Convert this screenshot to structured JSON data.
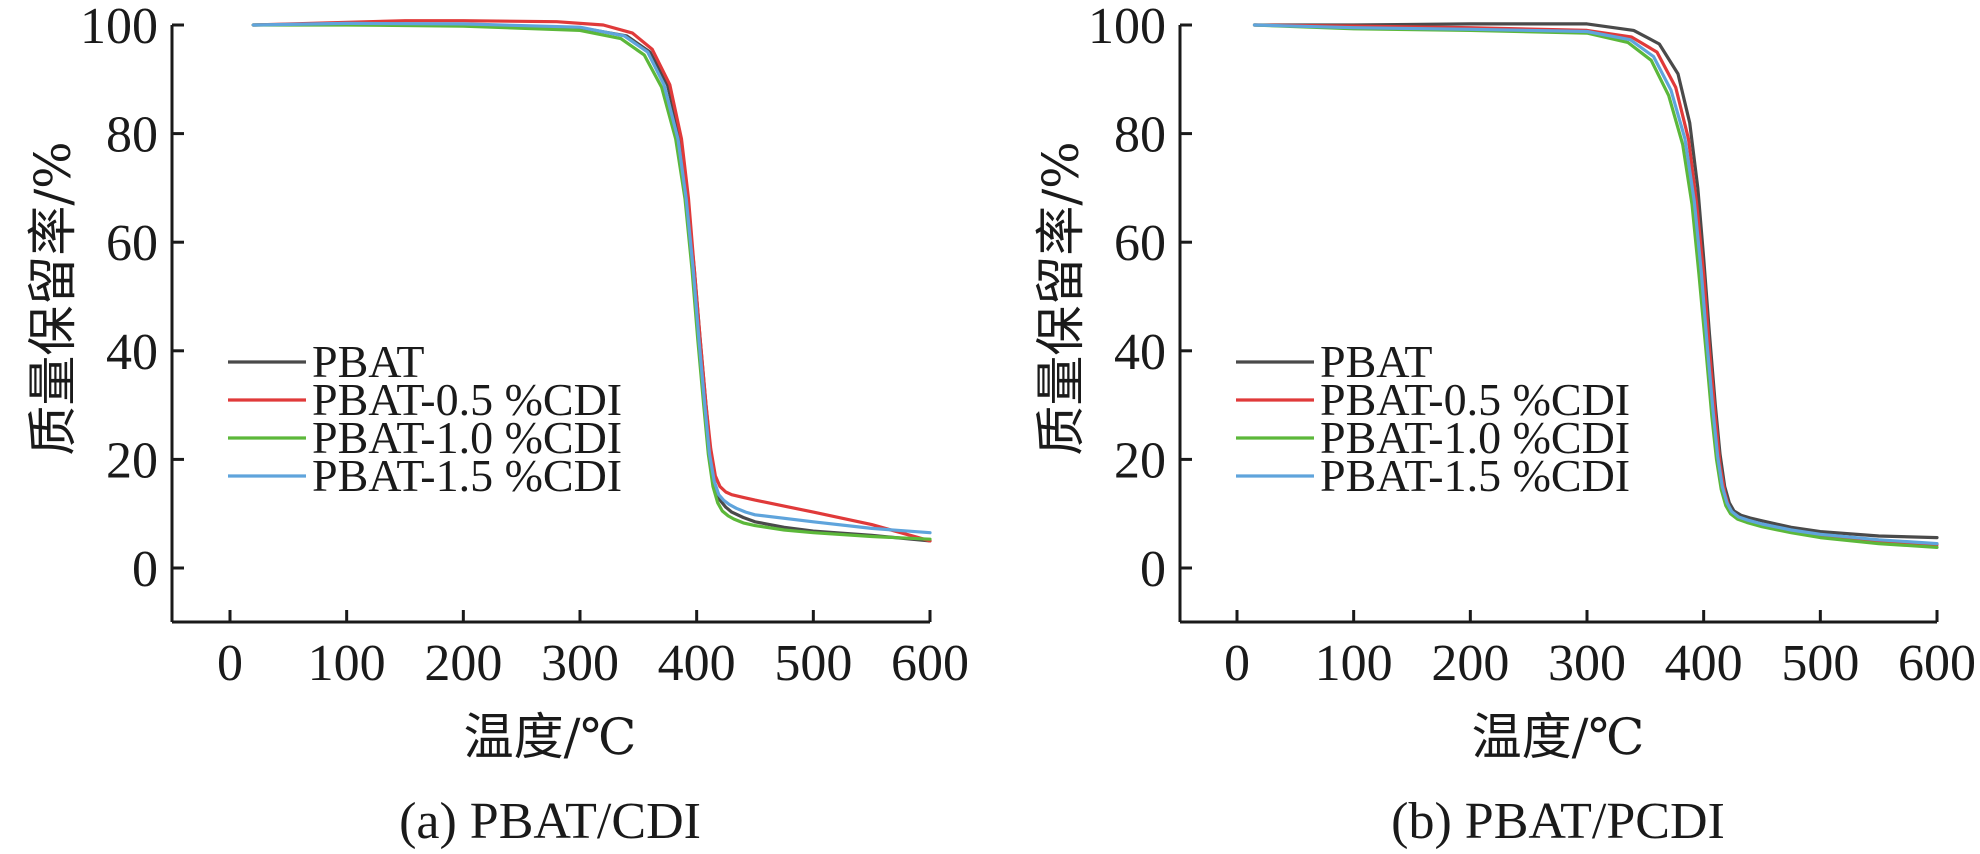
{
  "chart_data": [
    {
      "type": "line",
      "caption": "(a) PBAT/CDI",
      "xlabel": "温度/℃",
      "ylabel": "质量保留率/%",
      "xlim": [
        -50,
        600
      ],
      "ylim": [
        -10,
        100
      ],
      "xticks": [
        "0",
        "100",
        "200",
        "300",
        "400",
        "500",
        "600"
      ],
      "yticks": [
        "0",
        "20",
        "40",
        "60",
        "80",
        "100"
      ],
      "grid": false,
      "legend_position": "center-left",
      "series": [
        {
          "name": "PBAT",
          "color": "#4a4a4a",
          "x": [
            20,
            100,
            200,
            300,
            340,
            360,
            375,
            385,
            392,
            398,
            403,
            408,
            412,
            416,
            420,
            425,
            430,
            440,
            450,
            475,
            500,
            550,
            600
          ],
          "y": [
            100,
            100.2,
            100.1,
            99.5,
            98.0,
            95.0,
            89.0,
            80.0,
            68.0,
            55.0,
            42.0,
            30.0,
            21.0,
            15.0,
            12.5,
            11.2,
            10.3,
            9.3,
            8.5,
            7.5,
            6.8,
            6.0,
            5.0
          ]
        },
        {
          "name": "PBAT-0.5 %CDI",
          "color": "#e03a3a",
          "x": [
            20,
            100,
            150,
            200,
            280,
            320,
            345,
            362,
            377,
            387,
            393,
            398,
            403,
            408,
            412,
            416,
            420,
            425,
            430,
            440,
            450,
            500,
            550,
            590,
            600
          ],
          "y": [
            100,
            100.5,
            100.8,
            100.8,
            100.6,
            100.0,
            98.5,
            95.5,
            89.0,
            79.0,
            68.0,
            55.0,
            42.0,
            30.0,
            22.0,
            17.0,
            15.0,
            14.0,
            13.5,
            13.0,
            12.5,
            10.3,
            8.0,
            5.6,
            5.0
          ]
        },
        {
          "name": "PBAT-1.0 %CDI",
          "color": "#5cb83a",
          "x": [
            20,
            100,
            200,
            300,
            335,
            355,
            370,
            382,
            390,
            396,
            401,
            406,
            410,
            414,
            418,
            422,
            427,
            432,
            440,
            450,
            475,
            500,
            550,
            600
          ],
          "y": [
            100,
            100,
            99.8,
            99.0,
            97.5,
            94.5,
            88.5,
            79.0,
            68.0,
            55.0,
            42.0,
            30.0,
            21.0,
            15.0,
            12.0,
            10.5,
            9.6,
            9.0,
            8.3,
            7.8,
            7.0,
            6.5,
            5.8,
            5.3
          ]
        },
        {
          "name": "PBAT-1.5 %CDI",
          "color": "#5fa4dc",
          "x": [
            20,
            100,
            200,
            300,
            338,
            358,
            372,
            384,
            391,
            397,
            402,
            407,
            411,
            415,
            419,
            423,
            428,
            434,
            442,
            450,
            500,
            550,
            600
          ],
          "y": [
            100,
            100.3,
            100.2,
            99.6,
            98.0,
            95.0,
            89.0,
            79.0,
            68.0,
            55.0,
            42.0,
            30.0,
            21.0,
            16.0,
            13.5,
            12.5,
            11.7,
            11.0,
            10.3,
            9.8,
            8.5,
            7.3,
            6.5
          ]
        }
      ]
    },
    {
      "type": "line",
      "caption": "(b) PBAT/PCDI",
      "xlabel": "温度/℃",
      "ylabel": "质量保留率/%",
      "xlim": [
        -50,
        600
      ],
      "ylim": [
        -10,
        100
      ],
      "xticks": [
        "0",
        "100",
        "200",
        "300",
        "400",
        "500",
        "600"
      ],
      "yticks": [
        "0",
        "20",
        "40",
        "60",
        "80",
        "100"
      ],
      "grid": false,
      "legend_position": "center-left",
      "series": [
        {
          "name": "PBAT",
          "color": "#4a4a4a",
          "x": [
            15,
            100,
            200,
            300,
            340,
            362,
            378,
            388,
            395,
            400,
            405,
            410,
            414,
            418,
            422,
            426,
            432,
            440,
            450,
            475,
            500,
            550,
            600
          ],
          "y": [
            100,
            100,
            100.2,
            100.2,
            99.0,
            96.5,
            91.0,
            82.0,
            70.0,
            57.0,
            43.0,
            30.0,
            21.0,
            15.0,
            12.0,
            10.5,
            9.7,
            9.2,
            8.7,
            7.5,
            6.7,
            5.9,
            5.6
          ]
        },
        {
          "name": "PBAT-0.5 %CDI",
          "color": "#e03a3a",
          "x": [
            15,
            100,
            200,
            300,
            338,
            360,
            376,
            387,
            394,
            400,
            405,
            410,
            414,
            418,
            422,
            426,
            432,
            440,
            450,
            475,
            500,
            550,
            600
          ],
          "y": [
            100,
            99.8,
            99.5,
            99.0,
            97.8,
            95.0,
            88.5,
            79.0,
            67.0,
            54.0,
            40.0,
            28.0,
            19.0,
            14.0,
            11.0,
            9.8,
            9.0,
            8.5,
            8.0,
            6.8,
            6.0,
            4.9,
            4.3
          ]
        },
        {
          "name": "PBAT-1.0 %CDI",
          "color": "#5cb83a",
          "x": [
            15,
            100,
            200,
            300,
            335,
            355,
            370,
            382,
            390,
            396,
            402,
            407,
            411,
            415,
            419,
            423,
            429,
            437,
            450,
            475,
            500,
            550,
            600
          ],
          "y": [
            100,
            99.3,
            99.0,
            98.5,
            96.8,
            93.5,
            87.0,
            78.0,
            67.0,
            54.0,
            40.0,
            28.0,
            20.0,
            14.5,
            11.5,
            10.0,
            9.0,
            8.4,
            7.6,
            6.5,
            5.6,
            4.5,
            3.8
          ]
        },
        {
          "name": "PBAT-1.5 %CDI",
          "color": "#5fa4dc",
          "x": [
            15,
            100,
            200,
            300,
            337,
            357,
            372,
            384,
            392,
            398,
            403,
            408,
            412,
            416,
            420,
            424,
            430,
            438,
            450,
            475,
            500,
            550,
            600
          ],
          "y": [
            100,
            99.5,
            99.2,
            98.8,
            97.3,
            94.2,
            88.0,
            79.0,
            67.5,
            54.5,
            41.0,
            29.0,
            20.5,
            15.0,
            12.0,
            10.4,
            9.4,
            8.8,
            8.1,
            7.0,
            6.2,
            5.2,
            4.5
          ]
        }
      ]
    }
  ]
}
